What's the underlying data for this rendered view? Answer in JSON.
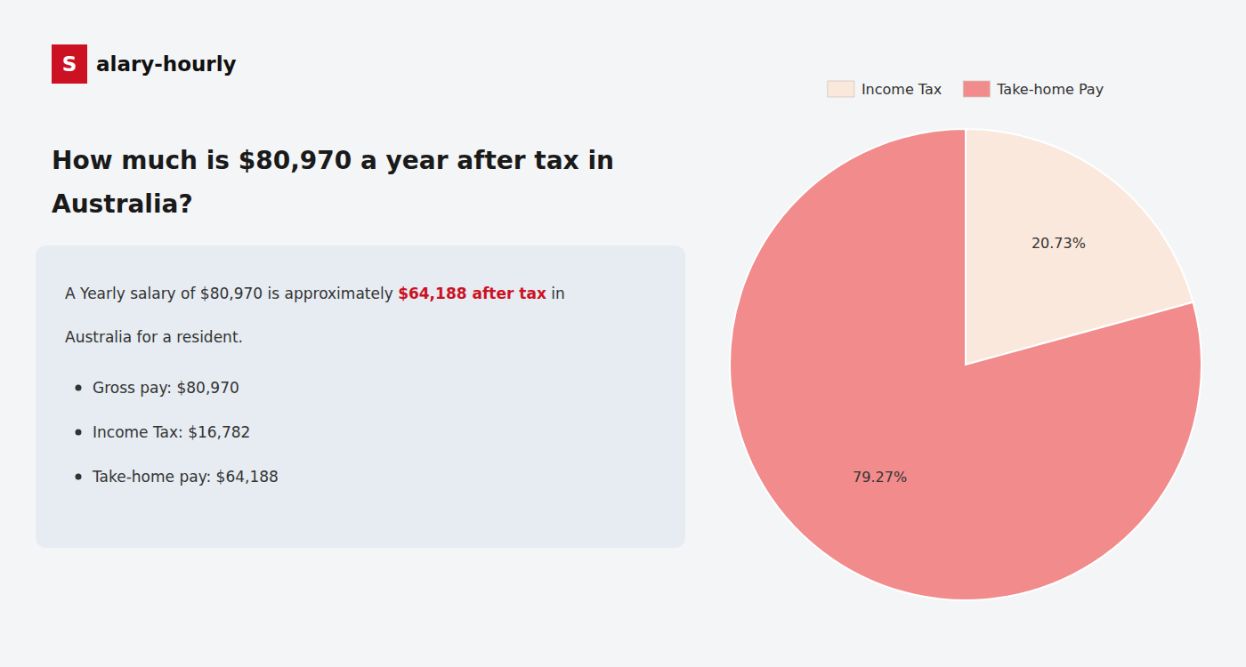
{
  "chart_data": {
    "type": "pie",
    "title": [
      "How much is $80,970 a year after tax in",
      "Australia?"
    ],
    "annotations": [
      "S",
      "alary-hourly",
      "A Yearly salary of $80,970 is approximately ",
      "$64,188 after tax",
      " in",
      "Australia for a resident.",
      "Gross pay: $80,970",
      "Income Tax: $16,782",
      "Take-home pay: $64,188"
    ],
    "categories": [
      "Income Tax",
      "Take-home Pay"
    ],
    "values": [
      20.73,
      79.27
    ],
    "colors": [
      "#fbe8dc",
      "#f28b8b"
    ],
    "data_labels": true,
    "value_labels": [
      "20.73%",
      "79.27%"
    ],
    "legend": "top"
  }
}
